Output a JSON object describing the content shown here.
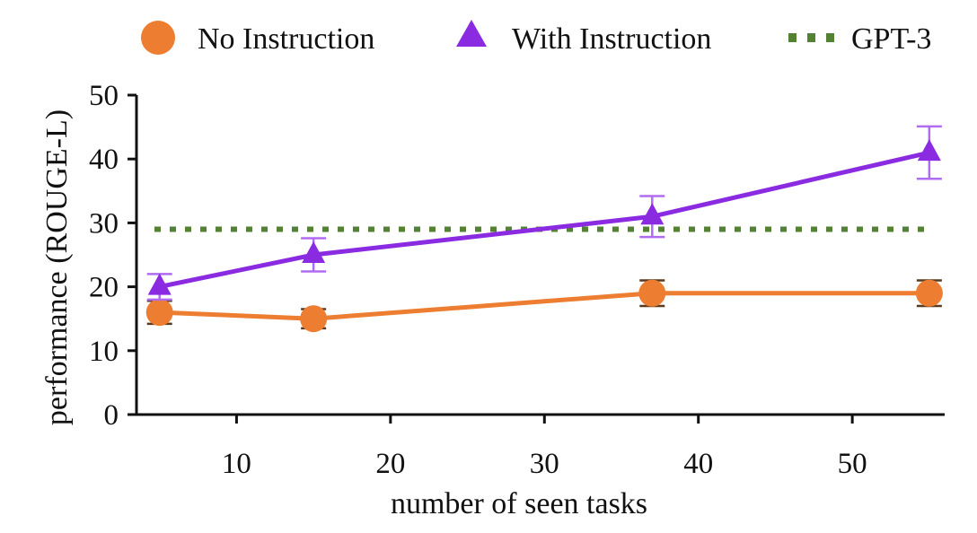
{
  "chart_data": {
    "type": "line",
    "xlabel": "number of seen tasks",
    "ylabel": "performance (ROUGE-L)",
    "xlim": [
      3.5,
      56
    ],
    "ylim": [
      0,
      50
    ],
    "xticks": [
      10,
      20,
      30,
      40,
      50
    ],
    "yticks": [
      0,
      10,
      20,
      30,
      40,
      50
    ],
    "grid": false,
    "legend_position": "top",
    "series": [
      {
        "name": "No Instruction",
        "marker": "circle",
        "color": "#ED7D31",
        "errorbar_color": "#5A3A1E",
        "x": [
          5,
          15,
          37,
          55
        ],
        "y": [
          16,
          15,
          19,
          19
        ],
        "error": [
          1.8,
          1.5,
          2.0,
          2.0
        ]
      },
      {
        "name": "With Instruction",
        "marker": "triangle",
        "color": "#8A2BE2",
        "errorbar_color": "#B06CF0",
        "x": [
          5,
          15,
          37,
          55
        ],
        "y": [
          20,
          25,
          31,
          41
        ],
        "error": [
          2.0,
          2.6,
          3.2,
          4.1
        ]
      }
    ],
    "reference_lines": [
      {
        "name": "GPT-3",
        "y": 29,
        "style": "dotted",
        "color": "#548235"
      }
    ]
  }
}
